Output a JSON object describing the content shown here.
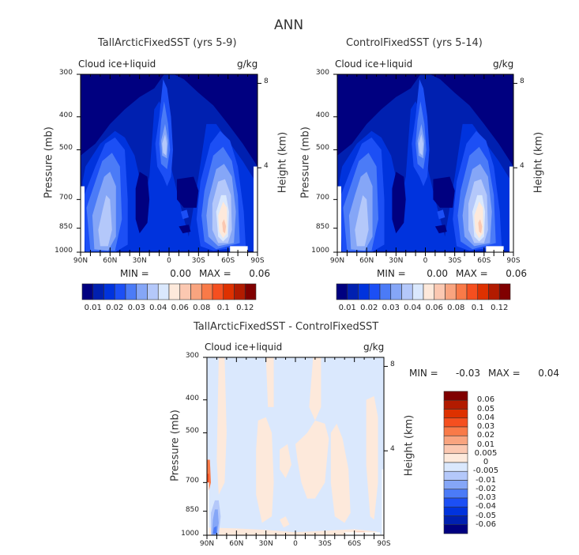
{
  "title": "ANN",
  "chart_data": [
    {
      "type": "heatmap",
      "title": "TallArcticFixedSST (yrs 5-9)",
      "variable": "Cloud ice+liquid",
      "units": "g/kg",
      "xlabel": "",
      "ylabel": "Pressure (mb)",
      "y2label": "Height (km)",
      "x_ticks": [
        "90N",
        "60N",
        "30N",
        "0",
        "30S",
        "60S",
        "90S"
      ],
      "y_ticks": [
        "300",
        "400",
        "500",
        "700",
        "850",
        "1000"
      ],
      "y2_ticks": [
        "8",
        "4"
      ],
      "stats": {
        "min_label": "MIN =",
        "min": "0.00",
        "max_label": "MAX =",
        "max": "0.06"
      },
      "colorbar": {
        "orientation": "horizontal",
        "labels": [
          "0.01",
          "0.02",
          "0.03",
          "0.04",
          "0.06",
          "0.08",
          "0.1",
          "0.12"
        ],
        "colors": [
          "#000080",
          "#0020b0",
          "#0033dd",
          "#1c4ff5",
          "#4b7bf7",
          "#85a6f7",
          "#b4c8fa",
          "#dae8fd",
          "#fde9db",
          "#fbc8b1",
          "#f9a47f",
          "#f97a48",
          "#f54f1f",
          "#de3100",
          "#b21b00",
          "#800000"
        ]
      },
      "features": [
        {
          "name": "nh-midlat-cloud",
          "lat": "65N",
          "level_range": [
            "450",
            "1000"
          ],
          "max": 0.04
        },
        {
          "name": "tropical-upper-cloud",
          "lat": "5N",
          "level": "500",
          "max": 0.04
        },
        {
          "name": "sh-midlat-cloud",
          "lat": "55S",
          "level_range": [
            "550",
            "1000"
          ],
          "max": 0.06
        }
      ]
    },
    {
      "type": "heatmap",
      "title": "ControlFixedSST (yrs 5-14)",
      "variable": "Cloud ice+liquid",
      "units": "g/kg",
      "xlabel": "",
      "ylabel": "Pressure (mb)",
      "y2label": "Height (km)",
      "x_ticks": [
        "90N",
        "60N",
        "30N",
        "0",
        "30S",
        "60S",
        "90S"
      ],
      "y_ticks": [
        "300",
        "400",
        "500",
        "700",
        "850",
        "1000"
      ],
      "y2_ticks": [
        "8",
        "4"
      ],
      "stats": {
        "min_label": "MIN =",
        "min": "0.00",
        "max_label": "MAX =",
        "max": "0.06"
      },
      "colorbar": {
        "orientation": "horizontal",
        "labels": [
          "0.01",
          "0.02",
          "0.03",
          "0.04",
          "0.06",
          "0.08",
          "0.1",
          "0.12"
        ],
        "colors": [
          "#000080",
          "#0020b0",
          "#0033dd",
          "#1c4ff5",
          "#4b7bf7",
          "#85a6f7",
          "#b4c8fa",
          "#dae8fd",
          "#fde9db",
          "#fbc8b1",
          "#f9a47f",
          "#f97a48",
          "#f54f1f",
          "#de3100",
          "#b21b00",
          "#800000"
        ]
      },
      "features": [
        {
          "name": "nh-midlat-cloud",
          "lat": "65N",
          "level_range": [
            "450",
            "1000"
          ],
          "max": 0.04
        },
        {
          "name": "tropical-upper-cloud",
          "lat": "5N",
          "level": "500",
          "max": 0.04
        },
        {
          "name": "sh-midlat-cloud",
          "lat": "55S",
          "level_range": [
            "550",
            "1000"
          ],
          "max": 0.06
        }
      ]
    },
    {
      "type": "heatmap",
      "title": "TallArcticFixedSST - ControlFixedSST",
      "variable": "Cloud ice+liquid",
      "units": "g/kg",
      "xlabel": "",
      "ylabel": "Pressure (mb)",
      "y2label": "Height (km)",
      "x_ticks": [
        "90N",
        "60N",
        "30N",
        "0",
        "30S",
        "60S",
        "90S"
      ],
      "y_ticks": [
        "300",
        "400",
        "500",
        "700",
        "850",
        "1000"
      ],
      "y2_ticks": [
        "8",
        "4"
      ],
      "stats": {
        "min_label": "MIN =",
        "min": "-0.03",
        "max_label": "MAX =",
        "max": "0.04"
      },
      "colorbar": {
        "orientation": "vertical",
        "labels": [
          "0.06",
          "0.05",
          "0.04",
          "0.03",
          "0.02",
          "0.01",
          "0.005",
          "0",
          "-0.005",
          "-0.01",
          "-0.02",
          "-0.03",
          "-0.04",
          "-0.05",
          "-0.06"
        ],
        "colors": [
          "#800000",
          "#b21b00",
          "#de3100",
          "#f54f1f",
          "#f97a48",
          "#f9a47f",
          "#fbc8b1",
          "#fde9db",
          "#dae8fd",
          "#b4c8fa",
          "#85a6f7",
          "#4b7bf7",
          "#1c4ff5",
          "#0033dd",
          "#0020b0",
          "#000080"
        ]
      },
      "features": [
        {
          "name": "arctic-low-negative",
          "lat": "80N",
          "level_range": [
            "800",
            "1000"
          ],
          "min": -0.03
        },
        {
          "name": "arctic-700-positive",
          "lat": "88N",
          "level": "700",
          "max": 0.02
        }
      ]
    }
  ]
}
